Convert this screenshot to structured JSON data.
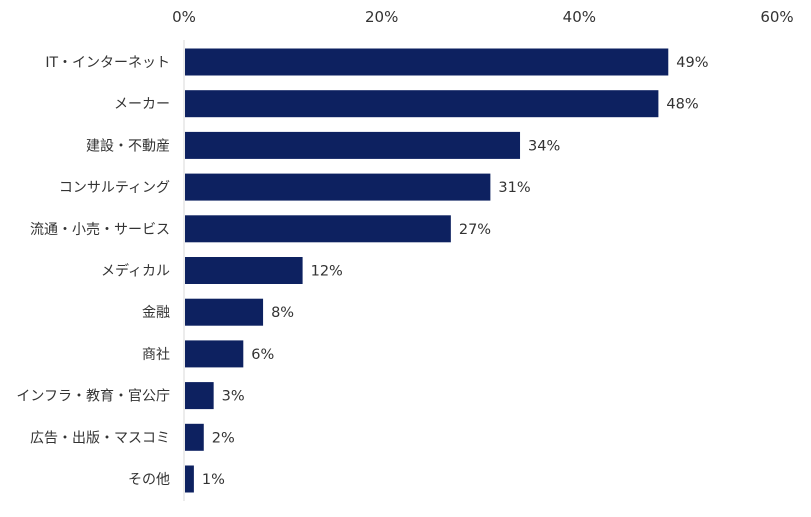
{
  "chart_data": {
    "type": "bar",
    "orientation": "horizontal",
    "categories": [
      "IT・インターネット",
      "メーカー",
      "建設・不動産",
      "コンサルティング",
      "流通・小売・サービス",
      "メディカル",
      "金融",
      "商社",
      "インフラ・教育・官公庁",
      "広告・出版・マスコミ",
      "その他"
    ],
    "values": [
      49,
      48,
      34,
      31,
      27,
      12,
      8,
      6,
      3,
      2,
      1
    ],
    "value_labels": [
      "49%",
      "48%",
      "34%",
      "31%",
      "27%",
      "12%",
      "8%",
      "6%",
      "3%",
      "2%",
      "1%"
    ],
    "xlim": [
      0,
      60
    ],
    "x_ticks": [
      0,
      20,
      40,
      60
    ],
    "x_tick_labels": [
      "0%",
      "20%",
      "40%",
      "60%"
    ],
    "x_axis_position": "top",
    "grid": false,
    "legend": "none",
    "bar_color": "#0d2160",
    "title": "",
    "xlabel": "",
    "ylabel": ""
  }
}
